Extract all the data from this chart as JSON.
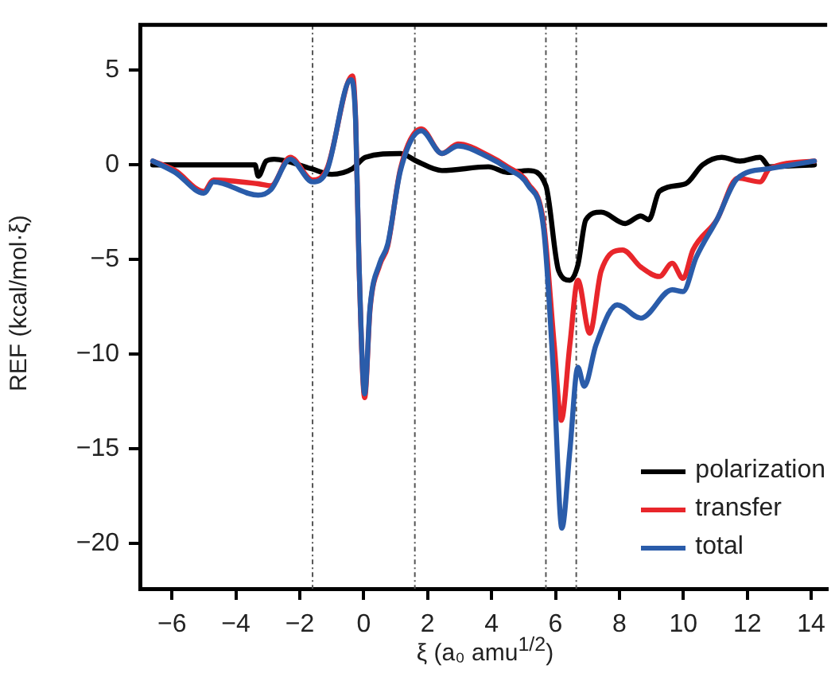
{
  "chart_data": {
    "type": "line",
    "xlabel": "ξ (a₀ amu$^{1/2}$)",
    "ylabel": "REF (kcal/mol·ξ)",
    "xlim": [
      -7,
      14.5
    ],
    "xticks": [
      -6,
      -4,
      -2,
      0,
      2,
      4,
      6,
      8,
      10,
      12,
      14
    ],
    "ylim": [
      -22.4,
      7.4
    ],
    "yticks": [
      5,
      0,
      -5,
      -10,
      -15,
      -20
    ],
    "grid": false,
    "legend": "bottom right",
    "marker": "none",
    "line_style": "solid",
    "ref_lines": [
      {
        "axis": "x",
        "value": -1.6,
        "color": "#555555",
        "line_style": "dashed"
      },
      {
        "axis": "x",
        "value": 1.6,
        "color": "#555555",
        "line_style": "dashed"
      },
      {
        "axis": "x",
        "value": 5.7,
        "color": "#555555",
        "line_style": "dashed"
      },
      {
        "axis": "x",
        "value": 6.65,
        "color": "#555555",
        "line_style": "dashed"
      }
    ],
    "series": [
      {
        "name": "polarization",
        "color": "#000000",
        "x": [
          -6.6,
          -3.4,
          -3.3,
          -3.05,
          -2.8,
          -1.65,
          -1.0,
          -0.35,
          0.05,
          1.15,
          1.65,
          2.45,
          3.9,
          4.5,
          5.15,
          5.7,
          6.1,
          6.45,
          6.7,
          6.95,
          7.43,
          8.18,
          8.67,
          8.92,
          9.25,
          10.07,
          10.6,
          11.2,
          11.77,
          12.4,
          12.7,
          14.1
        ],
        "values": [
          0,
          0,
          -0.6,
          0.2,
          0.3,
          -0.2,
          -0.5,
          -0.2,
          0.4,
          0.6,
          0.2,
          -0.3,
          -0.1,
          -0.4,
          -0.3,
          -1.1,
          -5.6,
          -6.1,
          -5.3,
          -2.9,
          -2.5,
          -3.1,
          -2.7,
          -2.9,
          -1.4,
          -1.0,
          0,
          0.4,
          0.2,
          0.4,
          -0.1,
          0
        ]
      },
      {
        "name": "transfer",
        "color": "#e8262b",
        "x": [
          -6.6,
          -5.9,
          -5.0,
          -4.7,
          -3.3,
          -2.9,
          -2.3,
          -1.6,
          -1.15,
          -0.35,
          -0.25,
          -0.15,
          0.03,
          0.2,
          0.5,
          0.75,
          1.15,
          1.8,
          2.45,
          2.95,
          3.9,
          4.5,
          5.15,
          5.63,
          5.96,
          6.18,
          6.45,
          6.7,
          7.07,
          7.43,
          8.1,
          8.67,
          9.25,
          9.65,
          9.99,
          10.3,
          11.05,
          11.7,
          12.4,
          12.7,
          14.1
        ],
        "values": [
          0.2,
          -0.3,
          -1.4,
          -0.8,
          -1.0,
          -1.1,
          0.4,
          -0.8,
          -0.2,
          4.7,
          2.3,
          -5.0,
          -12.3,
          -7.6,
          -5.3,
          -4.3,
          -0.2,
          1.9,
          0.6,
          1.1,
          0.5,
          -0.1,
          -1.0,
          -3.1,
          -9.5,
          -13.5,
          -9.5,
          -6.1,
          -8.9,
          -5.6,
          -4.5,
          -5.4,
          -5.9,
          -5.2,
          -6.0,
          -4.5,
          -2.9,
          -0.7,
          -0.9,
          -0.2,
          0.2
        ]
      },
      {
        "name": "total",
        "color": "#2a5caa",
        "x": [
          -6.6,
          -5.9,
          -5.0,
          -4.7,
          -3.3,
          -2.9,
          -2.3,
          -1.6,
          -1.15,
          -0.4,
          -0.25,
          -0.15,
          0.03,
          0.2,
          0.5,
          0.75,
          1.15,
          1.8,
          2.45,
          2.95,
          3.9,
          4.5,
          5.15,
          5.63,
          5.96,
          6.2,
          6.45,
          6.7,
          6.9,
          7.27,
          7.93,
          8.67,
          9.65,
          9.99,
          10.4,
          11.05,
          11.7,
          12.7,
          14.1
        ],
        "values": [
          0.2,
          -0.4,
          -1.5,
          -0.9,
          -1.6,
          -1.3,
          0.3,
          -0.9,
          -0.3,
          4.5,
          2.2,
          -5.0,
          -12.1,
          -7.5,
          -5.2,
          -4.2,
          -0.3,
          1.8,
          0.6,
          1.0,
          0.4,
          -0.2,
          -1.1,
          -3.4,
          -11.7,
          -19.2,
          -15.1,
          -10.7,
          -11.7,
          -9.5,
          -7.4,
          -8.1,
          -6.6,
          -6.7,
          -4.9,
          -2.9,
          -0.7,
          -0.2,
          0.2
        ]
      }
    ]
  }
}
